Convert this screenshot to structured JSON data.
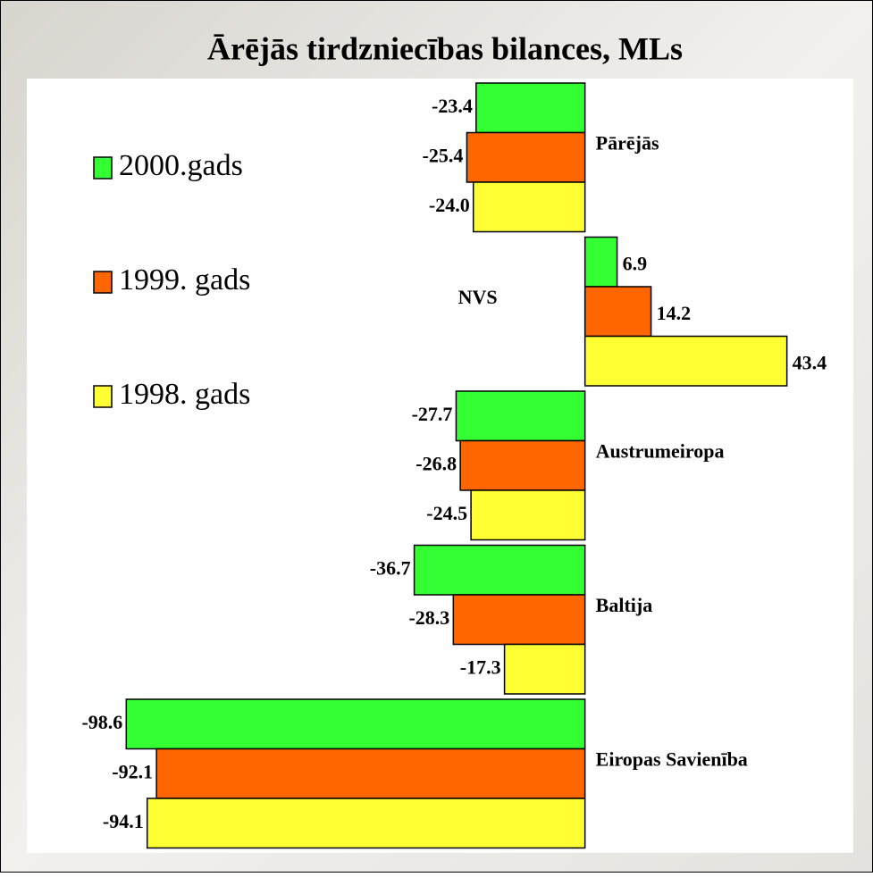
{
  "chart_data": {
    "type": "barh",
    "title": "Ārējās tirdzniecības bilances, MLs",
    "categories": [
      "Pārējās",
      "NVS",
      "Austrumeiropa",
      "Baltija",
      "Eiropas Savienība"
    ],
    "series": [
      {
        "name": "2000.gads",
        "color": "#33ff33",
        "values": [
          -23.4,
          6.9,
          -27.7,
          -36.7,
          -98.6
        ],
        "value_labels": [
          "-23.4",
          "6.9",
          "-27.7",
          "-36.7",
          "-98.6"
        ]
      },
      {
        "name": "1999. gads",
        "color": "#ff6600",
        "values": [
          -25.4,
          14.2,
          -26.8,
          -28.3,
          -92.1
        ],
        "value_labels": [
          "-25.4",
          "14.2",
          "-26.8",
          "-28.3",
          "-92.1"
        ]
      },
      {
        "name": "1998. gads",
        "color": "#ffff33",
        "values": [
          -24.0,
          43.4,
          -24.5,
          -17.3,
          -94.1
        ],
        "value_labels": [
          "-24.0",
          "43.4",
          "-24.5",
          "-17.3",
          "-94.1"
        ]
      }
    ],
    "xlim": [
      -100,
      50
    ]
  }
}
